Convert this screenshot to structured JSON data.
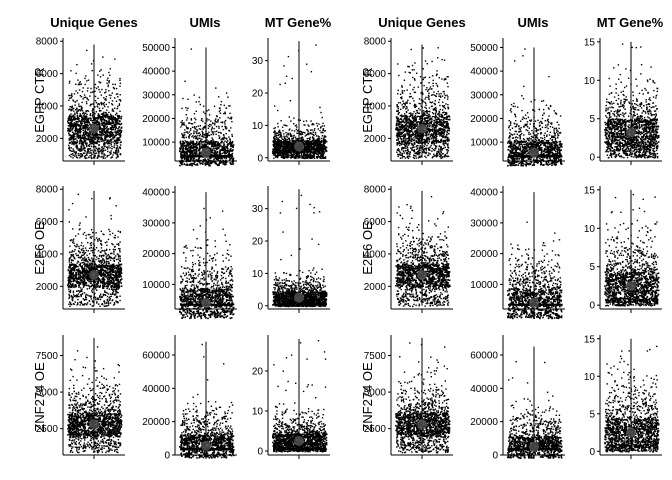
{
  "figure": {
    "column_titles": [
      "Unique Genes",
      "UMIs",
      "MT Gene%",
      "Unique Genes",
      "UMIs",
      "MT Gene%"
    ],
    "row_labels": [
      "EGFP CTR",
      "E2F6 OE",
      "ZNF274 OE"
    ]
  },
  "colors": {
    "points": "#000000",
    "median_marker": "#4d4d4d",
    "axis": "#000000"
  },
  "chart_data": [
    {
      "type": "scatter",
      "panel": "EGFP CTR / Unique Genes (left)",
      "title": "Unique Genes",
      "ylabel": "EGFP CTR",
      "ylim": [
        600,
        8200
      ],
      "yticks": [
        2000,
        4000,
        6000,
        8000
      ],
      "ytick_labels": [
        "2000",
        "4000",
        "6000",
        "8000"
      ],
      "range": [
        800,
        7800
      ],
      "median": 2600,
      "q3": 3700,
      "tail_density": 0.06
    },
    {
      "type": "scatter",
      "panel": "EGFP CTR / UMIs (left)",
      "title": "UMIs",
      "ylabel": "",
      "ylim": [
        2000,
        54000
      ],
      "yticks": [
        10000,
        20000,
        30000,
        40000,
        50000
      ],
      "ytick_labels": [
        "10000",
        "20000",
        "30000",
        "40000",
        "50000"
      ],
      "range": [
        4000,
        50000
      ],
      "median": 5500,
      "q3": 12000,
      "tail_density": 0.025
    },
    {
      "type": "scatter",
      "panel": "EGFP CTR / MT Gene% (left)",
      "title": "MT Gene%",
      "ylabel": "",
      "ylim": [
        -1,
        37
      ],
      "yticks": [
        0,
        10,
        20,
        30
      ],
      "ytick_labels": [
        "0",
        "10",
        "20",
        "30"
      ],
      "range": [
        0,
        36
      ],
      "median": 3.5,
      "q3": 6,
      "tail_density": 0.03
    },
    {
      "type": "scatter",
      "panel": "EGFP CTR / Unique Genes (right)",
      "title": "Unique Genes",
      "ylabel": "EGFP CTR",
      "ylim": [
        600,
        8200
      ],
      "yticks": [
        2000,
        4000,
        6000,
        8000
      ],
      "ytick_labels": [
        "2000",
        "4000",
        "6000",
        "8000"
      ],
      "range": [
        800,
        7800
      ],
      "median": 2600,
      "q3": 3700,
      "tail_density": 0.06
    },
    {
      "type": "scatter",
      "panel": "EGFP CTR / UMIs (right)",
      "title": "UMIs",
      "ylabel": "",
      "ylim": [
        2000,
        54000
      ],
      "yticks": [
        10000,
        20000,
        30000,
        40000,
        50000
      ],
      "ytick_labels": [
        "10000",
        "20000",
        "30000",
        "40000",
        "50000"
      ],
      "range": [
        4000,
        50000
      ],
      "median": 5500,
      "q3": 12000,
      "tail_density": 0.025
    },
    {
      "type": "scatter",
      "panel": "EGFP CTR / MT Gene% (right)",
      "title": "MT Gene%",
      "ylabel": "",
      "ylim": [
        -0.5,
        15.5
      ],
      "yticks": [
        0,
        5,
        10,
        15
      ],
      "ytick_labels": [
        "0",
        "5",
        "10",
        "15"
      ],
      "range": [
        0,
        15
      ],
      "median": 3.2,
      "q3": 5.5,
      "tail_density": 0.05
    },
    {
      "type": "scatter",
      "panel": "E2F6 OE / Unique Genes (left)",
      "title": "",
      "ylabel": "E2F6 OE",
      "ylim": [
        600,
        8200
      ],
      "yticks": [
        2000,
        4000,
        6000,
        8000
      ],
      "ytick_labels": [
        "2000",
        "4000",
        "6000",
        "8000"
      ],
      "range": [
        800,
        7900
      ],
      "median": 2700,
      "q3": 3600,
      "tail_density": 0.06
    },
    {
      "type": "scatter",
      "panel": "E2F6 OE / UMIs (left)",
      "title": "",
      "ylabel": "",
      "ylim": [
        2000,
        42000
      ],
      "yticks": [
        10000,
        20000,
        30000,
        40000
      ],
      "ytick_labels": [
        "10000",
        "20000",
        "30000",
        "40000"
      ],
      "range": [
        3500,
        40000
      ],
      "median": 4000,
      "q3": 10000,
      "tail_density": 0.03
    },
    {
      "type": "scatter",
      "panel": "E2F6 OE / MT Gene% (left)",
      "title": "",
      "ylabel": "",
      "ylim": [
        -1,
        37
      ],
      "yticks": [
        0,
        10,
        20,
        30
      ],
      "ytick_labels": [
        "0",
        "10",
        "20",
        "30"
      ],
      "range": [
        0,
        36
      ],
      "median": 2.5,
      "q3": 5,
      "tail_density": 0.03
    },
    {
      "type": "scatter",
      "panel": "E2F6 OE / Unique Genes (right)",
      "title": "",
      "ylabel": "E2F6 OE",
      "ylim": [
        600,
        8200
      ],
      "yticks": [
        2000,
        4000,
        6000,
        8000
      ],
      "ytick_labels": [
        "2000",
        "4000",
        "6000",
        "8000"
      ],
      "range": [
        800,
        7900
      ],
      "median": 2700,
      "q3": 3600,
      "tail_density": 0.06
    },
    {
      "type": "scatter",
      "panel": "E2F6 OE / UMIs (right)",
      "title": "",
      "ylabel": "",
      "ylim": [
        2000,
        42000
      ],
      "yticks": [
        10000,
        20000,
        30000,
        40000
      ],
      "ytick_labels": [
        "10000",
        "20000",
        "30000",
        "40000"
      ],
      "range": [
        3500,
        40000
      ],
      "median": 4000,
      "q3": 10000,
      "tail_density": 0.03
    },
    {
      "type": "scatter",
      "panel": "E2F6 OE / MT Gene% (right)",
      "title": "",
      "ylabel": "",
      "ylim": [
        -0.5,
        15.5
      ],
      "yticks": [
        0,
        5,
        10,
        15
      ],
      "ytick_labels": [
        "0",
        "5",
        "10",
        "15"
      ],
      "range": [
        0,
        15
      ],
      "median": 2.5,
      "q3": 5,
      "tail_density": 0.05
    },
    {
      "type": "scatter",
      "panel": "ZNF274 OE / Unique Genes (left)",
      "title": "",
      "ylabel": "ZNF274 OE",
      "ylim": [
        700,
        8900
      ],
      "yticks": [
        2500,
        5000,
        7500
      ],
      "ytick_labels": [
        "2500",
        "5000",
        "7500"
      ],
      "range": [
        900,
        8700
      ],
      "median": 2800,
      "q3": 3800,
      "tail_density": 0.06
    },
    {
      "type": "scatter",
      "panel": "ZNF274 OE / UMIs (left)",
      "title": "",
      "ylabel": "",
      "ylim": [
        0,
        72000
      ],
      "yticks": [
        0,
        20000,
        40000,
        60000
      ],
      "ytick_labels": [
        "0",
        "20000",
        "40000",
        "60000"
      ],
      "range": [
        3500,
        68000
      ],
      "median": 5500,
      "q3": 14000,
      "tail_density": 0.025
    },
    {
      "type": "scatter",
      "panel": "ZNF274 OE / MT Gene% (left)",
      "title": "",
      "ylabel": "",
      "ylim": [
        -1,
        29
      ],
      "yticks": [
        0,
        10,
        20
      ],
      "ytick_labels": [
        "0",
        "10",
        "20"
      ],
      "range": [
        0,
        28
      ],
      "median": 2.5,
      "q3": 5,
      "tail_density": 0.035
    },
    {
      "type": "scatter",
      "panel": "ZNF274 OE / Unique Genes (right)",
      "title": "",
      "ylabel": "ZNF274 OE",
      "ylim": [
        700,
        8900
      ],
      "yticks": [
        2500,
        5000,
        7500
      ],
      "ytick_labels": [
        "2500",
        "5000",
        "7500"
      ],
      "range": [
        900,
        8700
      ],
      "median": 2800,
      "q3": 3800,
      "tail_density": 0.06
    },
    {
      "type": "scatter",
      "panel": "ZNF274 OE / UMIs (right)",
      "title": "",
      "ylabel": "",
      "ylim": [
        0,
        72000
      ],
      "yticks": [
        0,
        20000,
        40000,
        60000
      ],
      "ytick_labels": [
        "0",
        "20000",
        "40000",
        "60000"
      ],
      "range": [
        3500,
        65000
      ],
      "median": 5000,
      "q3": 13000,
      "tail_density": 0.025
    },
    {
      "type": "scatter",
      "panel": "ZNF274 OE / MT Gene% (right)",
      "title": "",
      "ylabel": "",
      "ylim": [
        -0.5,
        15.5
      ],
      "yticks": [
        0,
        5,
        10,
        15
      ],
      "ytick_labels": [
        "0",
        "5",
        "10",
        "15"
      ],
      "range": [
        0,
        15
      ],
      "median": 2.5,
      "q3": 5,
      "tail_density": 0.05
    }
  ]
}
